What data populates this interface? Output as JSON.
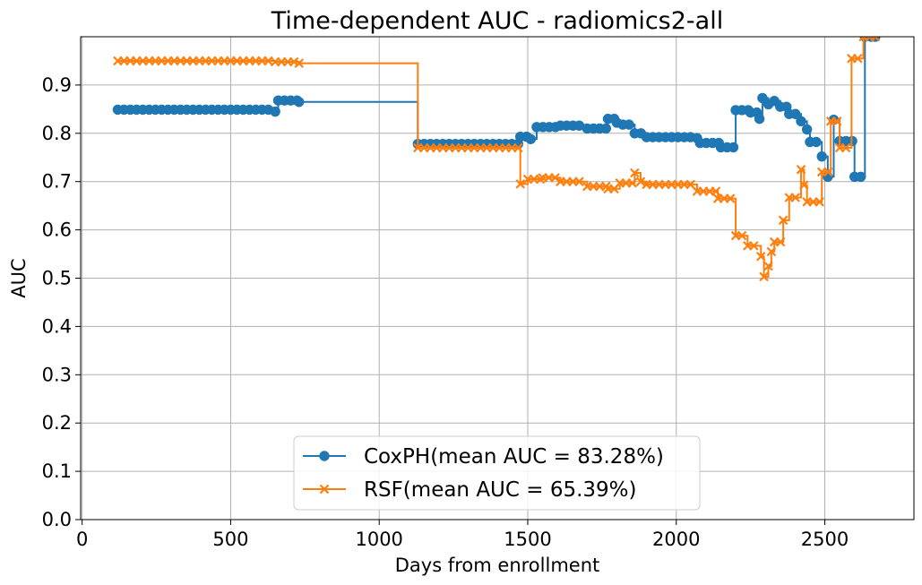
{
  "chart_data": {
    "type": "line",
    "title": "Time-dependent AUC - radiomics2-all",
    "xlabel": "Days from enrollment",
    "ylabel": "AUC",
    "xlim": [
      -5,
      2800
    ],
    "ylim": [
      0.0,
      1.0
    ],
    "xticks": [
      0,
      500,
      1000,
      1500,
      2000,
      2500
    ],
    "yticks": [
      0.0,
      0.1,
      0.2,
      0.3,
      0.4,
      0.5,
      0.6,
      0.7,
      0.8,
      0.9
    ],
    "grid": true,
    "legend_position": "bottom-center",
    "step": "post",
    "series": [
      {
        "name": "CoxPH(mean AUC = 83.28%)",
        "color": "#1f77b4",
        "marker": "circle",
        "points": [
          [
            120,
            0.849
          ],
          [
            650,
            0.845
          ],
          [
            660,
            0.868
          ],
          [
            730,
            0.865
          ],
          [
            1130,
            0.778
          ],
          [
            1475,
            0.793
          ],
          [
            1510,
            0.788
          ],
          [
            1530,
            0.813
          ],
          [
            1610,
            0.816
          ],
          [
            1700,
            0.81
          ],
          [
            1770,
            0.83
          ],
          [
            1800,
            0.822
          ],
          [
            1820,
            0.818
          ],
          [
            1860,
            0.8
          ],
          [
            1900,
            0.792
          ],
          [
            2070,
            0.79
          ],
          [
            2080,
            0.78
          ],
          [
            2150,
            0.771
          ],
          [
            2200,
            0.848
          ],
          [
            2250,
            0.843
          ],
          [
            2280,
            0.83
          ],
          [
            2290,
            0.873
          ],
          [
            2310,
            0.86
          ],
          [
            2330,
            0.867
          ],
          [
            2350,
            0.855
          ],
          [
            2380,
            0.84
          ],
          [
            2420,
            0.825
          ],
          [
            2440,
            0.808
          ],
          [
            2450,
            0.782
          ],
          [
            2490,
            0.752
          ],
          [
            2510,
            0.71
          ],
          [
            2530,
            0.828
          ],
          [
            2550,
            0.784
          ],
          [
            2600,
            0.71
          ],
          [
            2635,
            1.0
          ],
          [
            2670,
            1.0
          ]
        ]
      },
      {
        "name": "RSF(mean AUC = 65.39%)",
        "color": "#ff7f0e",
        "marker": "x",
        "points": [
          [
            120,
            0.95
          ],
          [
            650,
            0.948
          ],
          [
            730,
            0.945
          ],
          [
            1130,
            0.77
          ],
          [
            1475,
            0.695
          ],
          [
            1500,
            0.705
          ],
          [
            1550,
            0.708
          ],
          [
            1610,
            0.7
          ],
          [
            1700,
            0.69
          ],
          [
            1770,
            0.685
          ],
          [
            1810,
            0.697
          ],
          [
            1860,
            0.718
          ],
          [
            1880,
            0.7
          ],
          [
            1900,
            0.694
          ],
          [
            2070,
            0.68
          ],
          [
            2140,
            0.665
          ],
          [
            2200,
            0.588
          ],
          [
            2240,
            0.567
          ],
          [
            2285,
            0.545
          ],
          [
            2295,
            0.503
          ],
          [
            2310,
            0.525
          ],
          [
            2320,
            0.555
          ],
          [
            2330,
            0.575
          ],
          [
            2360,
            0.62
          ],
          [
            2380,
            0.667
          ],
          [
            2420,
            0.725
          ],
          [
            2430,
            0.693
          ],
          [
            2440,
            0.658
          ],
          [
            2490,
            0.72
          ],
          [
            2520,
            0.825
          ],
          [
            2550,
            0.77
          ],
          [
            2590,
            0.955
          ],
          [
            2630,
            1.0
          ],
          [
            2670,
            1.0
          ]
        ]
      }
    ]
  }
}
